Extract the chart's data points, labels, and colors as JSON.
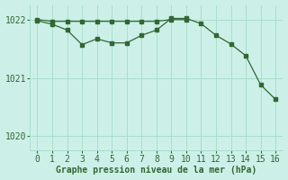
{
  "line1_x": [
    0,
    1,
    2,
    3,
    4,
    5,
    6,
    7,
    8,
    9,
    10,
    11,
    12,
    13,
    14,
    15,
    16
  ],
  "line1_y": [
    1021.98,
    1021.92,
    1021.82,
    1021.57,
    1021.67,
    1021.6,
    1021.6,
    1021.73,
    1021.82,
    1022.02,
    1022.02,
    1021.93,
    1021.73,
    1021.58,
    1021.38,
    1020.88,
    1020.63
  ],
  "line2_x": [
    0,
    1,
    2,
    3,
    4,
    5,
    6,
    7,
    8,
    9,
    10
  ],
  "line2_y": [
    1022.0,
    1021.97,
    1021.97,
    1021.97,
    1021.97,
    1021.97,
    1021.97,
    1021.97,
    1021.97,
    1022.0,
    1022.0
  ],
  "line_color": "#336633",
  "bg_color": "#ccf0e8",
  "grid_color": "#aaddcc",
  "xlabel": "Graphe pression niveau de la mer (hPa)",
  "ylim": [
    1019.75,
    1022.25
  ],
  "xlim": [
    -0.5,
    16.5
  ],
  "yticks": [
    1020,
    1021,
    1022
  ],
  "xticks": [
    0,
    1,
    2,
    3,
    4,
    5,
    6,
    7,
    8,
    9,
    10,
    11,
    12,
    13,
    14,
    15,
    16
  ],
  "xlabel_fontsize": 7,
  "tick_fontsize": 7
}
